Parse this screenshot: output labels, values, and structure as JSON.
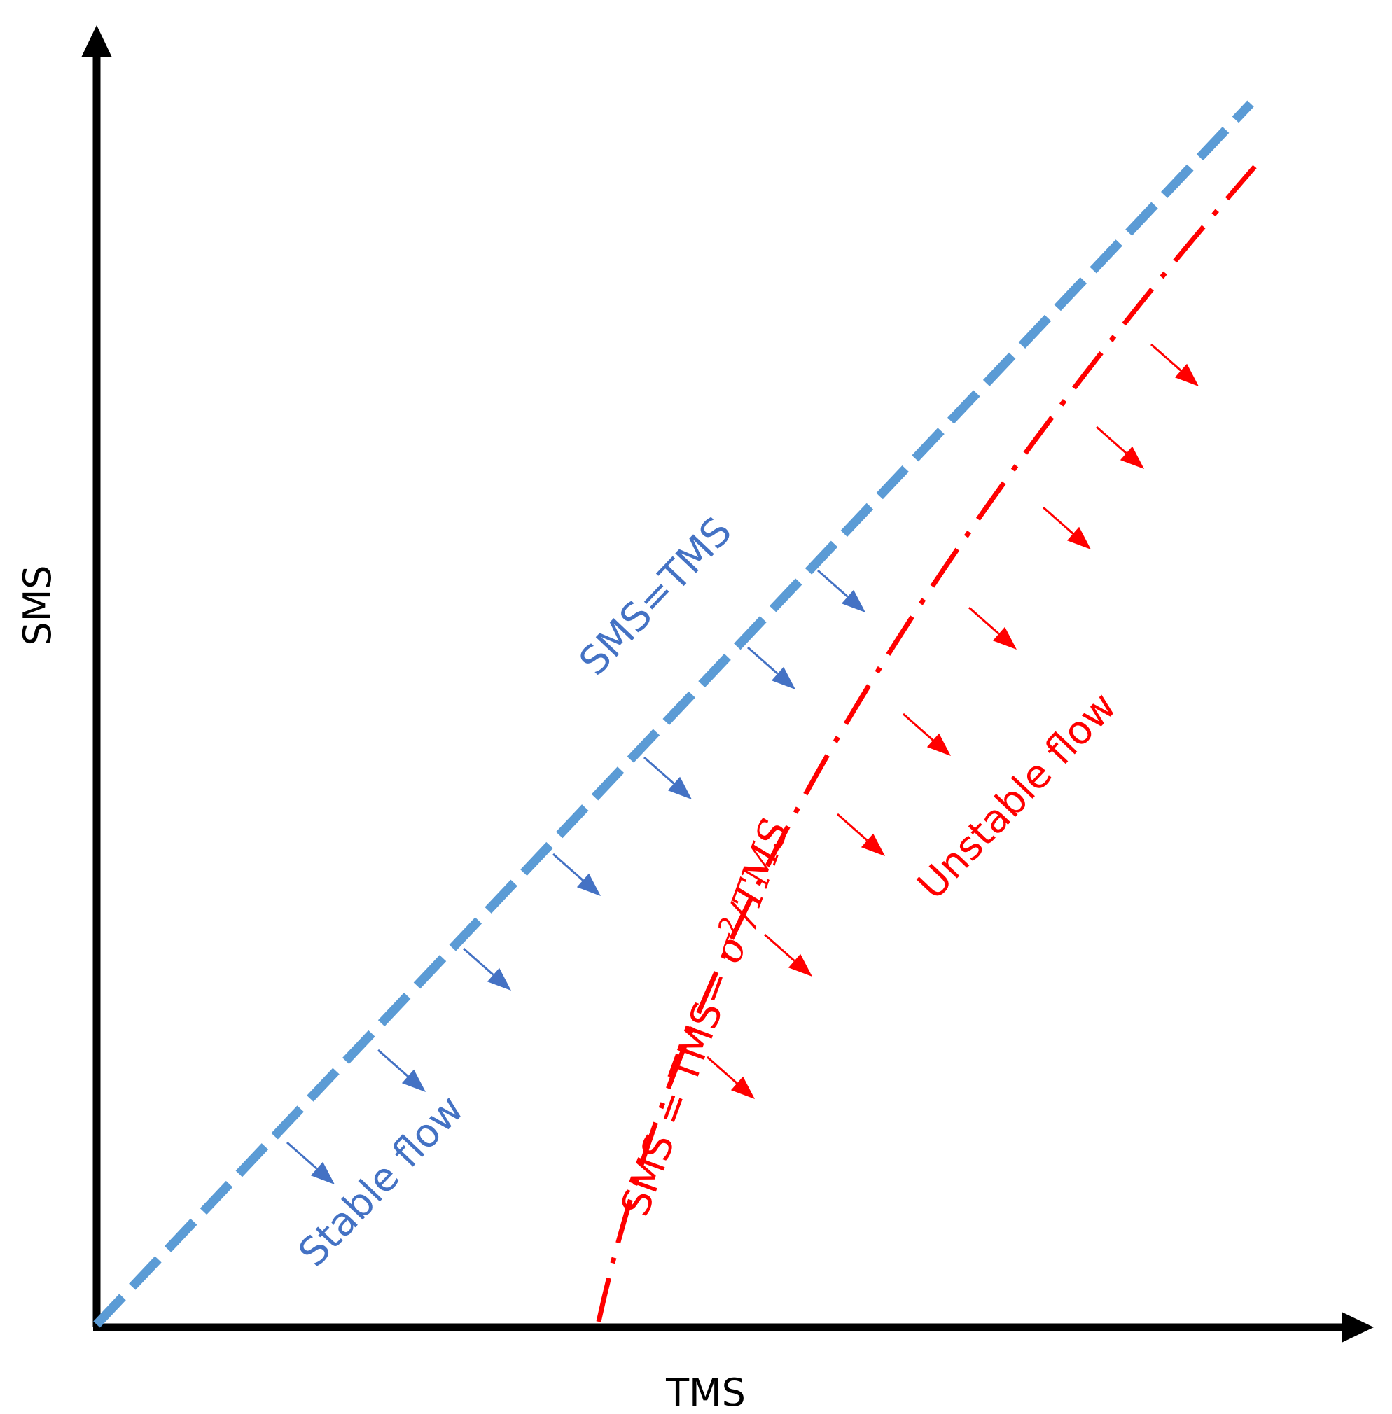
{
  "axes": {
    "x_label": "TMS",
    "y_label": "SMS"
  },
  "lines": {
    "stable": {
      "label": "SMS=TMS",
      "color": "#5b9bd5",
      "style": "dashed"
    },
    "unstable": {
      "label_prefix": "SMS = TMS− ",
      "label_sigma": "σ",
      "label_exp": "2",
      "label_suffix": "/TMS",
      "color": "#ff0000",
      "style": "dash-dot"
    }
  },
  "regions": {
    "stable": {
      "label": "Stable flow",
      "color": "#4472c4"
    },
    "unstable": {
      "label": "Unstable flow",
      "color": "#ff0000"
    }
  },
  "arrows": {
    "stable_count": 7,
    "unstable_count": 8,
    "stable_color": "#4472c4",
    "unstable_color": "#ff0000"
  }
}
